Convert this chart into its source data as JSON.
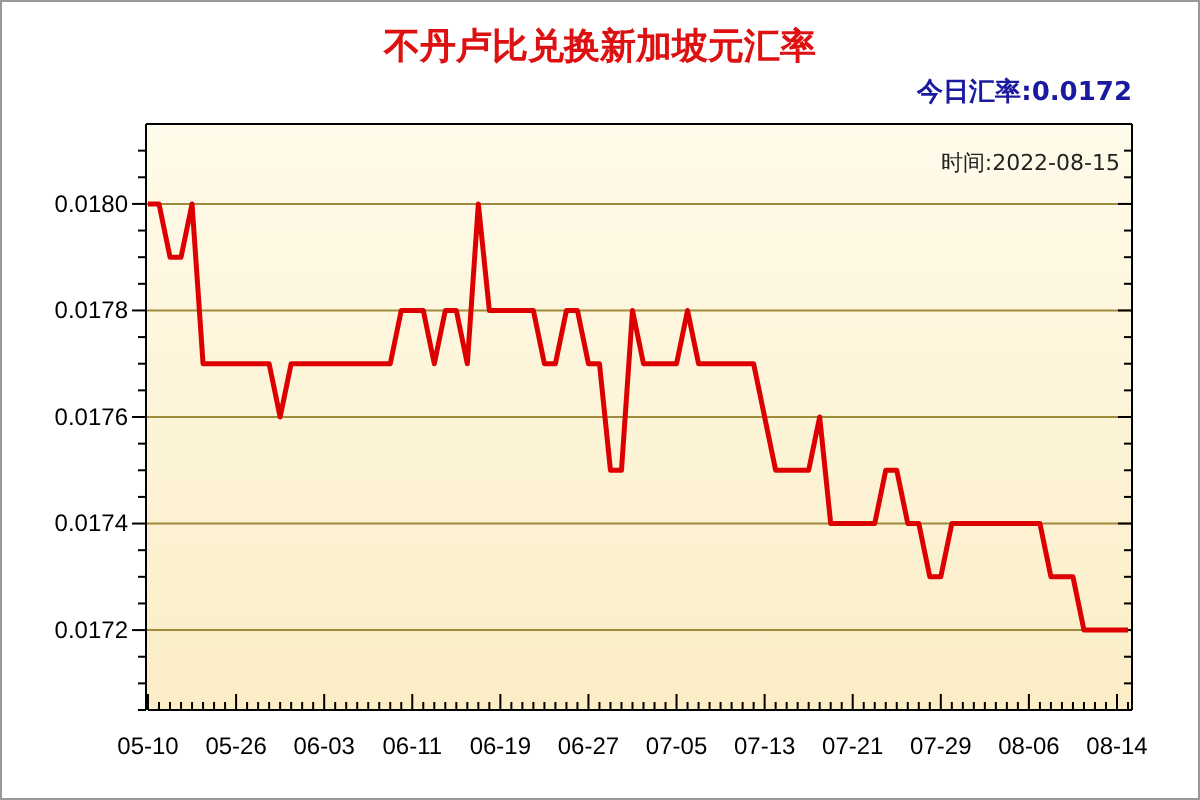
{
  "chart_data": {
    "type": "line",
    "title": "不丹卢比兑换新加坡元汇率",
    "annotations": [
      "今日汇率:0.0172",
      "时间:2022-08-15"
    ],
    "categories": [
      "05-10",
      null,
      null,
      null,
      null,
      null,
      null,
      null,
      "05-26",
      null,
      null,
      null,
      null,
      null,
      null,
      null,
      "06-03",
      null,
      null,
      null,
      null,
      null,
      null,
      null,
      "06-11",
      null,
      null,
      null,
      null,
      null,
      null,
      null,
      "06-19",
      null,
      null,
      null,
      null,
      null,
      null,
      null,
      "06-27",
      null,
      null,
      null,
      null,
      null,
      null,
      null,
      "07-05",
      null,
      null,
      null,
      null,
      null,
      null,
      null,
      "07-13",
      null,
      null,
      null,
      null,
      null,
      null,
      null,
      "07-21",
      null,
      null,
      null,
      null,
      null,
      null,
      null,
      "07-29",
      null,
      null,
      null,
      null,
      null,
      null,
      null,
      "08-06",
      null,
      null,
      null,
      null,
      null,
      null,
      null,
      "08-14",
      null
    ],
    "series": [
      {
        "color": "#dd0000",
        "values": [
          0.018,
          0.018,
          0.0179,
          0.0179,
          0.018,
          0.0177,
          0.0177,
          0.0177,
          0.0177,
          0.0177,
          0.0177,
          0.0177,
          0.0176,
          0.0177,
          0.0177,
          0.0177,
          0.0177,
          0.0177,
          0.0177,
          0.0177,
          0.0177,
          0.0177,
          0.0177,
          0.0178,
          0.0178,
          0.0178,
          0.0177,
          0.0178,
          0.0178,
          0.0177,
          0.018,
          0.0178,
          0.0178,
          0.0178,
          0.0178,
          0.0178,
          0.0177,
          0.0177,
          0.0178,
          0.0178,
          0.0177,
          0.0177,
          0.0175,
          0.0175,
          0.0178,
          0.0177,
          0.0177,
          0.0177,
          0.0177,
          0.0178,
          0.0177,
          0.0177,
          0.0177,
          0.0177,
          0.0177,
          0.0177,
          0.0176,
          0.0175,
          0.0175,
          0.0175,
          0.0175,
          0.0176,
          0.0174,
          0.0174,
          0.0174,
          0.0174,
          0.0174,
          0.0175,
          0.0175,
          0.0174,
          0.0174,
          0.0173,
          0.0173,
          0.0174,
          0.0174,
          0.0174,
          0.0174,
          0.0174,
          0.0174,
          0.0174,
          0.0174,
          0.0174,
          0.0173,
          0.0173,
          0.0173,
          0.0172,
          0.0172,
          0.0172,
          0.0172,
          0.0172
        ]
      }
    ],
    "ylim": [
      0.01705,
      0.01815
    ],
    "yticks": [
      {
        "value": 0.01705,
        "label": null
      },
      {
        "value": 0.0171,
        "label": null
      },
      {
        "value": 0.01715,
        "label": null
      },
      {
        "value": 0.0172,
        "label": "0.0172"
      },
      {
        "value": 0.01725,
        "label": null
      },
      {
        "value": 0.0173,
        "label": null
      },
      {
        "value": 0.01735,
        "label": null
      },
      {
        "value": 0.0174,
        "label": "0.0174"
      },
      {
        "value": 0.01745,
        "label": null
      },
      {
        "value": 0.0175,
        "label": null
      },
      {
        "value": 0.01755,
        "label": null
      },
      {
        "value": 0.0176,
        "label": "0.0176"
      },
      {
        "value": 0.01765,
        "label": null
      },
      {
        "value": 0.0177,
        "label": null
      },
      {
        "value": 0.01775,
        "label": null
      },
      {
        "value": 0.0178,
        "label": "0.0178"
      },
      {
        "value": 0.01785,
        "label": null
      },
      {
        "value": 0.0179,
        "label": null
      },
      {
        "value": 0.01795,
        "label": null
      },
      {
        "value": 0.018,
        "label": "0.0180"
      },
      {
        "value": 0.01805,
        "label": null
      },
      {
        "value": 0.0181,
        "label": null
      }
    ],
    "grid": "y",
    "marker": "none",
    "line_style": "solid"
  }
}
